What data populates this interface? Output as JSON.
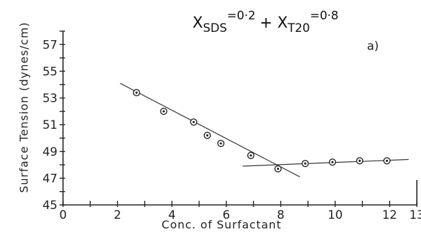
{
  "chart_data": {
    "type": "scatter",
    "title": {
      "x1": "X",
      "sub1": "SDS",
      "sup1": "=0·2",
      "mid": "+ X",
      "sub2": "T20",
      "sup2": "=0·8"
    },
    "panel_label": "a)",
    "xlabel": "Conc. of Surfactant",
    "ylabel": "Surface Tension (dynes/cm)",
    "xlim": [
      0,
      13
    ],
    "ylim": [
      45,
      58
    ],
    "xticks": [
      0,
      2,
      4,
      6,
      8,
      10,
      12,
      13
    ],
    "xtick_labels": [
      "0",
      "2",
      "4",
      "6",
      "8",
      "10",
      "12",
      "13"
    ],
    "yticks": [
      45,
      47,
      49,
      51,
      53,
      55,
      57
    ],
    "ytick_labels": [
      "45",
      "47",
      "49",
      "51",
      "53",
      "55",
      "57"
    ],
    "grid": false,
    "series": [
      {
        "points": [
          {
            "x": 2.7,
            "y": 53.4
          },
          {
            "x": 3.7,
            "y": 52.0
          },
          {
            "x": 4.8,
            "y": 51.2
          },
          {
            "x": 5.3,
            "y": 50.2
          },
          {
            "x": 5.8,
            "y": 49.6
          },
          {
            "x": 6.9,
            "y": 48.7
          },
          {
            "x": 7.9,
            "y": 47.7
          },
          {
            "x": 8.9,
            "y": 48.1
          },
          {
            "x": 9.9,
            "y": 48.2
          },
          {
            "x": 10.9,
            "y": 48.3
          },
          {
            "x": 11.9,
            "y": 48.3
          }
        ]
      }
    ],
    "fit_lines": [
      {
        "x": [
          2.1,
          8.7
        ],
        "y": [
          54.1,
          47.1
        ]
      },
      {
        "x": [
          6.6,
          12.7
        ],
        "y": [
          47.9,
          48.4
        ]
      }
    ]
  }
}
